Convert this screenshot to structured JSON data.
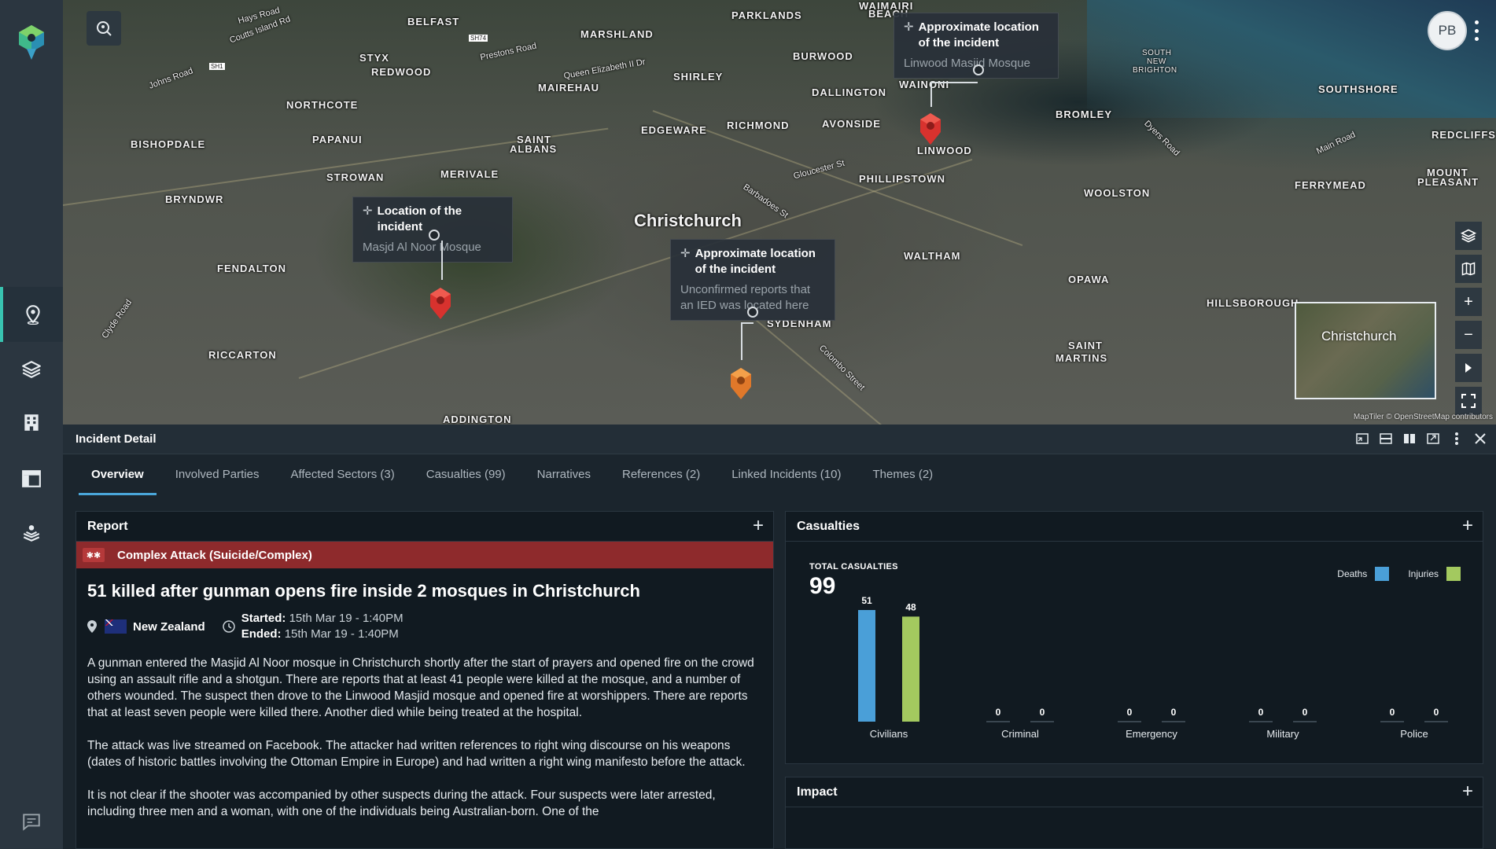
{
  "sidebar": {
    "items": [
      {
        "name": "map-pin",
        "active": true
      },
      {
        "name": "layers",
        "active": false
      },
      {
        "name": "building",
        "active": false
      },
      {
        "name": "dashboard",
        "active": false
      },
      {
        "name": "anchor-person",
        "active": false
      }
    ]
  },
  "map": {
    "labels": {
      "city": "Christchurch",
      "papanui": "PAPANUI",
      "st_albans_1": "SAINT",
      "st_albans_2": "ALBANS",
      "edgeware": "EDGEWARE",
      "richmond": "RICHMOND",
      "avonside": "AVONSIDE",
      "dallington": "DALLINGTON",
      "burwood": "BURWOOD",
      "shirley": "SHIRLEY",
      "mairehau": "MAIREHAU",
      "marshland": "MARSHLAND",
      "parklands": "PARKLANDS",
      "waimairi_beach_1": "WAIMAIRI",
      "waimairi_beach_2": "BEACH",
      "bishopdale": "BISHOPDALE",
      "northcote": "NORTHCOTE",
      "styx": "STYX",
      "redwood": "REDWOOD",
      "belfast": "BELFAST",
      "bryndwr": "BRYNDWR",
      "strowan": "STROWAN",
      "merivale": "MERIVALE",
      "fendalton": "FENDALTON",
      "riccarton": "RICCARTON",
      "addington": "ADDINGTON",
      "sydenham": "SYDENHAM",
      "waltham": "WALTHAM",
      "phillipstown": "PHILLIPSTOWN",
      "linwood": "LINWOOD",
      "wainoni": "WAINONI",
      "opawa": "OPAWA",
      "woolston": "WOOLSTON",
      "bromley": "BROMLEY",
      "south_new_brighton_1": "SOUTH",
      "south_new_brighton_2": "NEW",
      "south_new_brighton_3": "BRIGHTON",
      "southshore": "SOUTHSHORE",
      "redcliffs": "REDCLIFFS",
      "ferrymead": "FERRYMEAD",
      "mount_pleasant_1": "MOUNT",
      "mount_pleasant_2": "PLEASANT",
      "hillsborough": "HILLSBOROUGH",
      "saint_martins_1": "SAINT",
      "saint_martins_2": "MARTINS",
      "clyde_road": "Clyde Road",
      "colombo_street": "Colombo Street",
      "gloucester_st": "Gloucester St",
      "barbadoes_st": "Barbadoes St",
      "dyers_road": "Dyers Road",
      "main_road": "Main Road",
      "johns_road": "Johns Road",
      "hays_road": "Hays Road",
      "coutts_island_rd": "Coutts Island Rd",
      "prestons_road": "Prestons Road",
      "qe2_dr": "Queen Elizabeth II Dr",
      "sh1": "SH1",
      "sh74": "SH74"
    },
    "callouts": [
      {
        "title": "Location of the incident",
        "subtitle": "Masjd Al Noor Mosque"
      },
      {
        "title": "Approximate location of the incident",
        "subtitle": "Unconfirmed reports that an IED was located here"
      },
      {
        "title": "Approximate location of the incident",
        "subtitle": "Linwood Masjid Mosque"
      }
    ],
    "minimap_label": "Christchurch",
    "attribution": "MapTiler © OpenStreetMap contributors",
    "user_initials": "PB"
  },
  "panel": {
    "title": "Incident Detail",
    "tabs": [
      {
        "label": "Overview",
        "active": true
      },
      {
        "label": "Involved Parties"
      },
      {
        "label": "Affected Sectors (3)"
      },
      {
        "label": "Casualties (99)"
      },
      {
        "label": "Narratives"
      },
      {
        "label": "References (2)"
      },
      {
        "label": "Linked Incidents (10)"
      },
      {
        "label": "Themes (2)"
      }
    ]
  },
  "report": {
    "title": "Report",
    "category": "Complex Attack (Suicide/Complex)",
    "headline": "51 killed after gunman opens fire inside 2 mosques in Christchurch",
    "country": "New Zealand",
    "started_label": "Started:",
    "started_value": "15th Mar 19 - 1:40PM",
    "ended_label": "Ended:",
    "ended_value": "15th Mar 19 - 1:40PM",
    "paragraphs": [
      "A gunman entered the Masjid Al Noor mosque in Christchurch shortly after the start of prayers and opened fire on the crowd using an assault rifle and a shotgun. There are reports that at least 41 people were killed at the mosque, and a number of others wounded. The suspect then drove to the Linwood Masjid mosque  and opened fire at worshippers. There are reports that at least seven people were killed there. Another died while being treated at the hospital.",
      "The attack was live streamed on Facebook. The attacker had written references to right wing discourse on his weapons (dates of historic battles involving the Ottoman Empire in Europe) and had written a right wing manifesto before the attack.",
      "It is not clear if the shooter was accompanied by other suspects during the attack. Four suspects were later arrested, including three men and a woman, with one of the individuals being Australian-born. One of the"
    ]
  },
  "casualties": {
    "title": "Casualties",
    "total_label": "TOTAL CASUALTIES",
    "total_value": "99",
    "legend": {
      "deaths": "Deaths",
      "injuries": "Injuries"
    },
    "colors": {
      "deaths": "#4a9fd8",
      "injuries": "#a3c95f"
    }
  },
  "impact": {
    "title": "Impact"
  },
  "chart_data": {
    "type": "bar",
    "title": "TOTAL CASUALTIES",
    "categories": [
      "Civilians",
      "Criminal",
      "Emergency",
      "Military",
      "Police"
    ],
    "series": [
      {
        "name": "Deaths",
        "values": [
          51,
          0,
          0,
          0,
          0
        ]
      },
      {
        "name": "Injuries",
        "values": [
          48,
          0,
          0,
          0,
          0
        ]
      }
    ],
    "ylim": [
      0,
      51
    ],
    "legend": "top-right",
    "grid": false
  }
}
